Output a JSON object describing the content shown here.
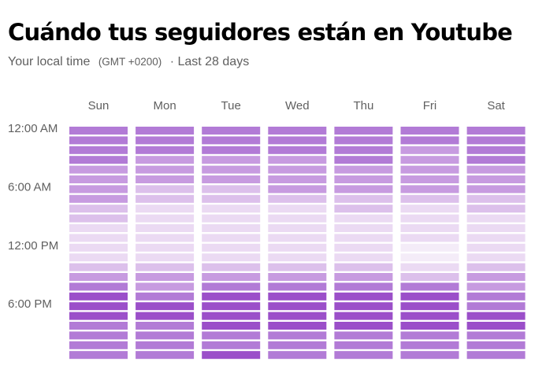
{
  "header": {
    "title": "Cuándo tus seguidores están en Youtube",
    "subtitle_label": "Your local time",
    "timezone": "(GMT +0200)",
    "range": "· Last 28 days"
  },
  "chart_data": {
    "type": "heatmap",
    "columns": [
      "Sun",
      "Mon",
      "Tue",
      "Wed",
      "Thu",
      "Fri",
      "Sat"
    ],
    "row_labels": [
      {
        "row": 0,
        "label": "12:00 AM"
      },
      {
        "row": 6,
        "label": "6:00 AM"
      },
      {
        "row": 12,
        "label": "12:00 PM"
      },
      {
        "row": 18,
        "label": "6:00 PM"
      }
    ],
    "rows": 24,
    "scale": {
      "min": 0,
      "max": 5
    },
    "palette": [
      "#f4ecf8",
      "#ebdaf3",
      "#dcc0eb",
      "#c79be0",
      "#b27bd6",
      "#9b4fc9"
    ],
    "values": [
      [
        4,
        4,
        4,
        4,
        4,
        4,
        4
      ],
      [
        4,
        4,
        4,
        4,
        4,
        4,
        4
      ],
      [
        4,
        4,
        4,
        4,
        4,
        3,
        4
      ],
      [
        4,
        3,
        3,
        3,
        4,
        3,
        4
      ],
      [
        3,
        3,
        3,
        3,
        3,
        3,
        3
      ],
      [
        3,
        3,
        3,
        3,
        3,
        3,
        3
      ],
      [
        3,
        2,
        2,
        3,
        3,
        3,
        3
      ],
      [
        3,
        2,
        2,
        2,
        2,
        2,
        2
      ],
      [
        2,
        1,
        1,
        1,
        2,
        1,
        2
      ],
      [
        2,
        1,
        1,
        1,
        1,
        1,
        1
      ],
      [
        1,
        1,
        1,
        1,
        1,
        1,
        1
      ],
      [
        1,
        1,
        1,
        1,
        1,
        1,
        1
      ],
      [
        1,
        1,
        1,
        1,
        1,
        0,
        1
      ],
      [
        1,
        1,
        1,
        1,
        1,
        0,
        1
      ],
      [
        2,
        2,
        2,
        2,
        2,
        1,
        2
      ],
      [
        3,
        3,
        3,
        3,
        3,
        2,
        3
      ],
      [
        4,
        3,
        4,
        4,
        4,
        4,
        3
      ],
      [
        5,
        4,
        5,
        5,
        5,
        5,
        4
      ],
      [
        5,
        5,
        5,
        5,
        5,
        5,
        4
      ],
      [
        5,
        5,
        5,
        5,
        5,
        5,
        5
      ],
      [
        4,
        4,
        5,
        5,
        5,
        5,
        5
      ],
      [
        4,
        4,
        4,
        4,
        4,
        4,
        4
      ],
      [
        4,
        4,
        4,
        4,
        4,
        4,
        4
      ],
      [
        4,
        4,
        5,
        4,
        4,
        4,
        4
      ]
    ]
  }
}
